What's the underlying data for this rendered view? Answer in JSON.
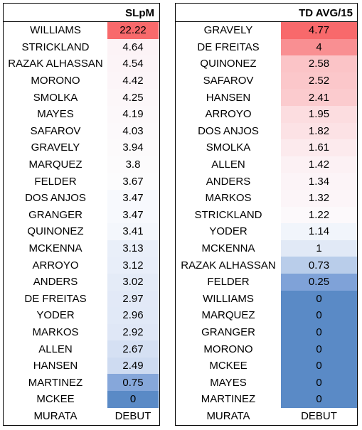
{
  "left_table": {
    "header": "SLpM",
    "rows": [
      {
        "name": "WILLIAMS",
        "value": "22.22",
        "color": "#f8696b"
      },
      {
        "name": "STRICKLAND",
        "value": "4.64",
        "color": "#fcf3f6"
      },
      {
        "name": "RAZAK ALHASSAN",
        "value": "4.54",
        "color": "#fcf4f7"
      },
      {
        "name": "MORONO",
        "value": "4.42",
        "color": "#fcf5f8"
      },
      {
        "name": "SMOLKA",
        "value": "4.25",
        "color": "#fcf7f9"
      },
      {
        "name": "MAYES",
        "value": "4.19",
        "color": "#fcf8fa"
      },
      {
        "name": "SAFAROV",
        "value": "4.03",
        "color": "#fcf9fb"
      },
      {
        "name": "GRAVELY",
        "value": "3.94",
        "color": "#fcfafb"
      },
      {
        "name": "MARQUEZ",
        "value": "3.8",
        "color": "#fcfbfc"
      },
      {
        "name": "FELDER",
        "value": "3.67",
        "color": "#fcfcfd"
      },
      {
        "name": "DOS ANJOS",
        "value": "3.47",
        "color": "#f7f9fd"
      },
      {
        "name": "GRANGER",
        "value": "3.47",
        "color": "#f7f9fd"
      },
      {
        "name": "QUINONEZ",
        "value": "3.41",
        "color": "#f4f7fc"
      },
      {
        "name": "MCKENNA",
        "value": "3.13",
        "color": "#e9eff9"
      },
      {
        "name": "ARROYO",
        "value": "3.12",
        "color": "#e8eef9"
      },
      {
        "name": "ANDERS",
        "value": "3.02",
        "color": "#e4ebf7"
      },
      {
        "name": "DE FREITAS",
        "value": "2.97",
        "color": "#e2e9f7"
      },
      {
        "name": "YODER",
        "value": "2.96",
        "color": "#e1e9f7"
      },
      {
        "name": "MARKOS",
        "value": "2.92",
        "color": "#dfe7f6"
      },
      {
        "name": "ALLEN",
        "value": "2.67",
        "color": "#d5e0f3"
      },
      {
        "name": "HANSEN",
        "value": "2.49",
        "color": "#cedbf1"
      },
      {
        "name": "MARTINEZ",
        "value": "0.75",
        "color": "#86a7da"
      },
      {
        "name": "MCKEE",
        "value": "0",
        "color": "#5a8ac6"
      },
      {
        "name": "MURATA",
        "value": "DEBUT",
        "color": "#ffffff"
      }
    ]
  },
  "right_table": {
    "header": "TD AVG/15",
    "rows": [
      {
        "name": "GRAVELY",
        "value": "4.77",
        "color": "#f8696b"
      },
      {
        "name": "DE FREITAS",
        "value": "4",
        "color": "#f98f92"
      },
      {
        "name": "QUINONEZ",
        "value": "2.58",
        "color": "#fbc4c7"
      },
      {
        "name": "SAFAROV",
        "value": "2.52",
        "color": "#fbc7ca"
      },
      {
        "name": "HANSEN",
        "value": "2.41",
        "color": "#fbcbce"
      },
      {
        "name": "ARROYO",
        "value": "1.95",
        "color": "#fcdde0"
      },
      {
        "name": "DOS ANJOS",
        "value": "1.82",
        "color": "#fce2e5"
      },
      {
        "name": "SMOLKA",
        "value": "1.61",
        "color": "#fceaed"
      },
      {
        "name": "ALLEN",
        "value": "1.42",
        "color": "#fcf1f4"
      },
      {
        "name": "ANDERS",
        "value": "1.34",
        "color": "#fcf4f7"
      },
      {
        "name": "MARKOS",
        "value": "1.32",
        "color": "#fcf5f8"
      },
      {
        "name": "STRICKLAND",
        "value": "1.22",
        "color": "#fcf9fb"
      },
      {
        "name": "YODER",
        "value": "1.14",
        "color": "#f1f5fb"
      },
      {
        "name": "MCKENNA",
        "value": "1",
        "color": "#e1e9f6"
      },
      {
        "name": "RAZAK ALHASSAN",
        "value": "0.73",
        "color": "#b9cdea"
      },
      {
        "name": "FELDER",
        "value": "0.25",
        "color": "#7fa2d8"
      },
      {
        "name": "WILLIAMS",
        "value": "0",
        "color": "#5a8ac6"
      },
      {
        "name": "MARQUEZ",
        "value": "0",
        "color": "#5a8ac6"
      },
      {
        "name": "GRANGER",
        "value": "0",
        "color": "#5a8ac6"
      },
      {
        "name": "MORONO",
        "value": "0",
        "color": "#5a8ac6"
      },
      {
        "name": "MCKEE",
        "value": "0",
        "color": "#5a8ac6"
      },
      {
        "name": "MAYES",
        "value": "0",
        "color": "#5a8ac6"
      },
      {
        "name": "MARTINEZ",
        "value": "0",
        "color": "#5a8ac6"
      },
      {
        "name": "MURATA",
        "value": "DEBUT",
        "color": "#ffffff"
      }
    ]
  }
}
